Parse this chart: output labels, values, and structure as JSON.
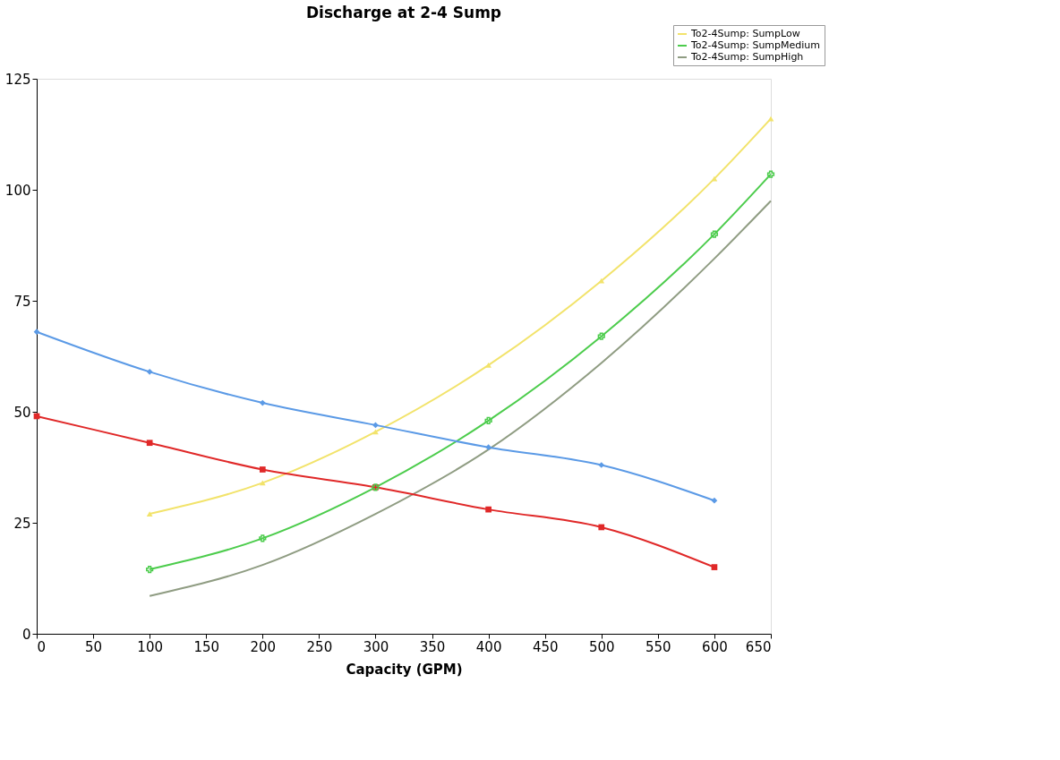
{
  "chart_data": {
    "type": "line",
    "title": "Discharge at 2-4 Sump",
    "xlabel": "Capacity (GPM)",
    "xlim": [
      0,
      650
    ],
    "xticks": [
      0,
      50,
      100,
      150,
      200,
      250,
      300,
      350,
      400,
      450,
      500,
      550,
      600,
      650
    ],
    "ylim": [
      0,
      125
    ],
    "yticks": [
      0,
      25,
      50,
      75,
      100,
      125
    ],
    "grid": false,
    "legend": "top right",
    "line_style": "solid",
    "series": [
      {
        "name": "To2-4Sump: SumpLow",
        "color": "#f2e36b",
        "marker": "triangle",
        "x": [
          100,
          200,
          300,
          400,
          500,
          600,
          650
        ],
        "values": [
          27,
          34,
          45.5,
          60.5,
          79.5,
          102.5,
          116
        ]
      },
      {
        "name": "To2-4Sump: SumpMedium",
        "color": "#4ccc4c",
        "marker": "cross",
        "x": [
          100,
          200,
          300,
          400,
          500,
          600,
          650
        ],
        "values": [
          14.5,
          21.5,
          33,
          48,
          67,
          90,
          103.5
        ]
      },
      {
        "name": "To2-4Sump: SumpHigh",
        "color": "#8f9c82",
        "marker": "none",
        "x": [
          100,
          200,
          300,
          400,
          500,
          600,
          650
        ],
        "values": [
          8.5,
          15.5,
          27,
          41.5,
          61,
          84.5,
          97.5
        ]
      },
      {
        "color": "#5b9ae6",
        "marker": "diamond",
        "x": [
          0,
          100,
          200,
          300,
          400,
          500,
          600
        ],
        "values": [
          68,
          59,
          52,
          47,
          42,
          38,
          30
        ]
      },
      {
        "color": "#e02828",
        "marker": "square",
        "x": [
          0,
          100,
          200,
          300,
          400,
          500,
          600
        ],
        "values": [
          49,
          43,
          37,
          33,
          28,
          24,
          15
        ]
      }
    ]
  }
}
